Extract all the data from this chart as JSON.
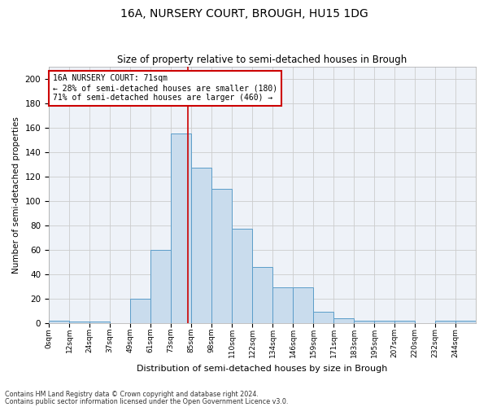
{
  "title1": "16A, NURSERY COURT, BROUGH, HU15 1DG",
  "title2": "Size of property relative to semi-detached houses in Brough",
  "xlabel": "Distribution of semi-detached houses by size in Brough",
  "ylabel": "Number of semi-detached properties",
  "bin_labels": [
    "0sqm",
    "12sqm",
    "24sqm",
    "37sqm",
    "49sqm",
    "61sqm",
    "73sqm",
    "85sqm",
    "98sqm",
    "110sqm",
    "122sqm",
    "134sqm",
    "146sqm",
    "159sqm",
    "171sqm",
    "183sqm",
    "195sqm",
    "207sqm",
    "220sqm",
    "232sqm",
    "244sqm"
  ],
  "bar_heights": [
    2,
    1,
    1,
    0,
    20,
    60,
    155,
    127,
    110,
    77,
    46,
    29,
    29,
    9,
    4,
    2,
    2,
    2,
    0,
    2,
    2
  ],
  "bar_color": "#c9dced",
  "bar_edge_color": "#5b9dc9",
  "property_bin_index": 6,
  "annotation_title": "16A NURSERY COURT: 71sqm",
  "annotation_line1": "← 28% of semi-detached houses are smaller (180)",
  "annotation_line2": "71% of semi-detached houses are larger (460) →",
  "red_line_color": "#cc0000",
  "annotation_box_edge": "#cc0000",
  "ylim": [
    0,
    210
  ],
  "yticks": [
    0,
    20,
    40,
    60,
    80,
    100,
    120,
    140,
    160,
    180,
    200
  ],
  "grid_color": "#cccccc",
  "bg_color": "#eef2f8",
  "footnote1": "Contains HM Land Registry data © Crown copyright and database right 2024.",
  "footnote2": "Contains public sector information licensed under the Open Government Licence v3.0."
}
